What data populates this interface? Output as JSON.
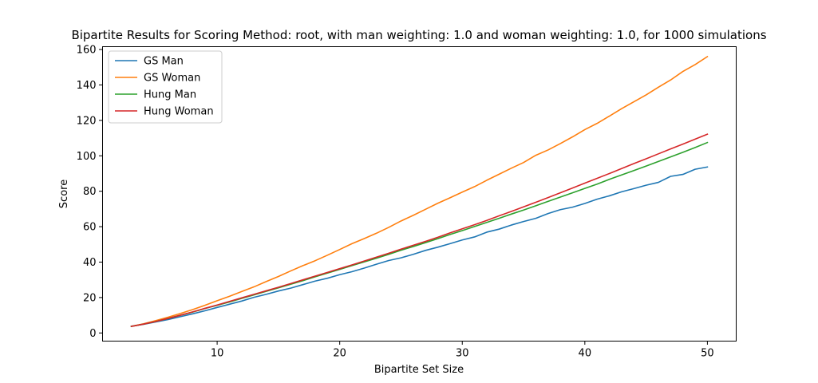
{
  "chart_data": {
    "type": "line",
    "title": "Bipartite Results for Scoring Method: root, with man weighting: 1.0 and woman weighting: 1.0, for 1000 simulations",
    "xlabel": "Bipartite Set Size",
    "ylabel": "Score",
    "xlim": [
      0.65,
      52.35
    ],
    "ylim": [
      -4.6,
      161.6
    ],
    "xticks": [
      10,
      20,
      30,
      40,
      50
    ],
    "yticks": [
      0,
      20,
      40,
      60,
      80,
      100,
      120,
      140,
      160
    ],
    "grid": false,
    "legend_position": "upper-left",
    "x": [
      3,
      4,
      5,
      6,
      7,
      8,
      9,
      10,
      11,
      12,
      13,
      14,
      15,
      16,
      17,
      18,
      19,
      20,
      21,
      22,
      23,
      24,
      25,
      26,
      27,
      28,
      29,
      30,
      31,
      32,
      33,
      34,
      35,
      36,
      37,
      38,
      39,
      40,
      41,
      42,
      43,
      44,
      45,
      46,
      47,
      48,
      49,
      50
    ],
    "series": [
      {
        "name": "GS Man",
        "color": "#1f77b4",
        "values": [
          3.8,
          4.9,
          6.2,
          7.6,
          9.2,
          10.8,
          12.5,
          14.4,
          16.2,
          18.0,
          20.1,
          21.8,
          23.7,
          25.3,
          27.3,
          29.3,
          30.9,
          32.9,
          34.6,
          36.6,
          38.8,
          40.9,
          42.4,
          44.4,
          46.6,
          48.4,
          50.4,
          52.5,
          54.2,
          56.9,
          58.6,
          60.9,
          62.9,
          64.7,
          67.4,
          69.6,
          71.0,
          73.1,
          75.5,
          77.4,
          79.7,
          81.5,
          83.4,
          85.0,
          88.4,
          89.5,
          92.4,
          93.7
        ]
      },
      {
        "name": "GS Woman",
        "color": "#ff7f0e",
        "values": [
          3.7,
          5.2,
          7.0,
          8.9,
          11.0,
          13.2,
          15.6,
          18.2,
          20.7,
          23.4,
          26.0,
          29.0,
          31.9,
          35.0,
          38.0,
          40.8,
          43.9,
          47.1,
          50.4,
          53.3,
          56.3,
          59.6,
          63.2,
          66.4,
          69.8,
          73.2,
          76.3,
          79.5,
          82.6,
          86.2,
          89.6,
          93.0,
          96.2,
          100.3,
          103.3,
          106.9,
          110.7,
          114.8,
          118.3,
          122.4,
          126.6,
          130.5,
          134.4,
          138.7,
          142.8,
          147.6,
          151.5,
          156.0
        ]
      },
      {
        "name": "Hung Man",
        "color": "#2ca02c",
        "values": [
          3.7,
          5.0,
          6.5,
          8.2,
          10.0,
          11.8,
          13.8,
          15.6,
          17.5,
          19.5,
          21.5,
          23.5,
          25.5,
          27.5,
          29.5,
          31.7,
          33.8,
          35.9,
          38.0,
          40.1,
          42.2,
          44.4,
          46.7,
          48.8,
          51.0,
          53.2,
          55.6,
          57.8,
          60.1,
          62.4,
          64.7,
          67.1,
          69.4,
          71.8,
          74.3,
          76.7,
          79.1,
          81.6,
          84.0,
          86.7,
          89.2,
          91.7,
          94.2,
          96.8,
          99.4,
          102.0,
          104.7,
          107.5
        ]
      },
      {
        "name": "Hung Woman",
        "color": "#d62728",
        "values": [
          3.7,
          5.0,
          6.5,
          8.2,
          10.0,
          11.9,
          13.9,
          15.8,
          17.8,
          19.8,
          21.8,
          23.8,
          25.8,
          27.9,
          30.0,
          32.1,
          34.2,
          36.3,
          38.4,
          40.6,
          42.8,
          45.0,
          47.3,
          49.5,
          51.7,
          54.0,
          56.5,
          58.8,
          61.1,
          63.5,
          66.1,
          68.6,
          71.2,
          73.8,
          76.4,
          79.1,
          81.8,
          84.6,
          87.3,
          90.0,
          92.8,
          95.6,
          98.3,
          101.1,
          103.9,
          106.6,
          109.4,
          112.2
        ]
      }
    ]
  }
}
